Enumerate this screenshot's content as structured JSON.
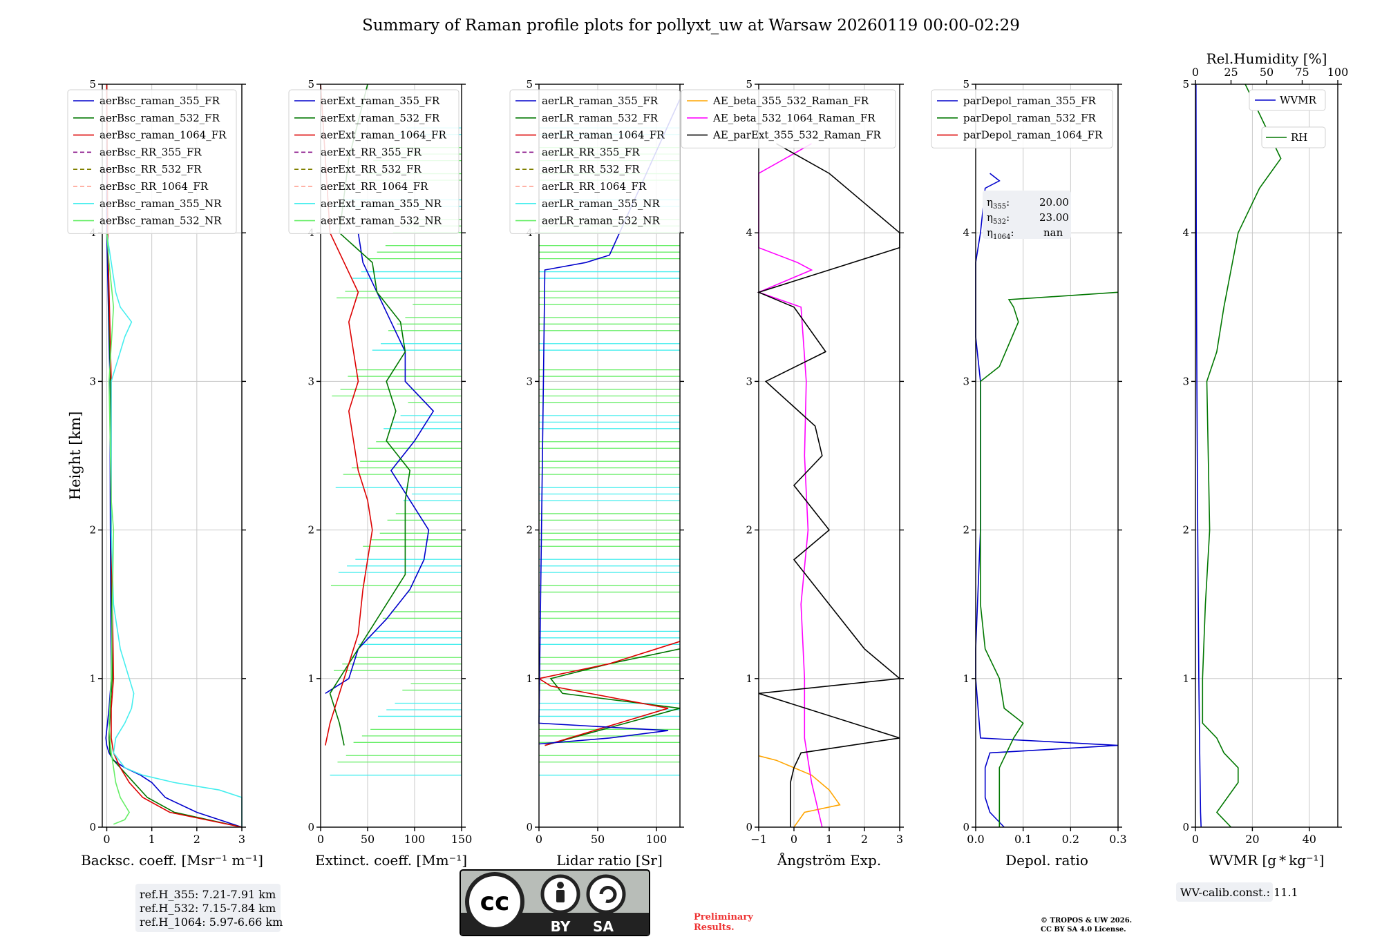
{
  "figure": {
    "title": "Summary of Raman profile plots for pollyxt_uw at Warsaw 20260119 00:00-02:29",
    "ylabel": "Height [km]",
    "license_badge": {
      "cc": "cc",
      "by": "BY",
      "sa": "SA"
    },
    "preliminary": [
      "Preliminary",
      "Results."
    ],
    "copyright": [
      "© TROPOS & UW 2026.",
      "CC BY SA 4.0 License."
    ],
    "ref_box": [
      "ref.H_355: 7.21-7.91 km",
      "ref.H_532: 7.15-7.84 km",
      "ref.H_1064: 5.97-6.66 km"
    ],
    "wv_box": "WV-calib.const.: 11.1",
    "eta_box": {
      "eta355": "20.00",
      "eta532": "23.00",
      "eta1064": "nan"
    }
  },
  "colors": {
    "blue": "#0000cc",
    "green": "#007700",
    "red": "#dd0000",
    "cyan": "#44eeee",
    "lightgreen": "#66ee66",
    "purple": "#800080",
    "olive": "#808000",
    "salmon": "#ff9988",
    "orange": "#ffa500",
    "magenta": "#ff00ff",
    "black": "#000000"
  },
  "chart_data": [
    {
      "type": "line",
      "id": "bsc",
      "xlabel": "Backsc. coeff. [Msr⁻¹ m⁻¹]",
      "xlim": [
        -0.1,
        3
      ],
      "ylim": [
        0,
        5
      ],
      "xticks": [
        0,
        1,
        2,
        3
      ],
      "xticklabels": [
        "0",
        "1",
        "2",
        "3"
      ],
      "legend": [
        "aerBsc_raman_355_FR",
        "aerBsc_raman_532_FR",
        "aerBsc_raman_1064_FR",
        "aerBsc_RR_355_FR",
        "aerBsc_RR_532_FR",
        "aerBsc_RR_1064_FR",
        "aerBsc_raman_355_NR",
        "aerBsc_raman_532_NR"
      ],
      "series": [
        {
          "name": "aerBsc_raman_355_FR",
          "color": "blue",
          "y": [
            0,
            0.1,
            0.2,
            0.3,
            0.35,
            0.4,
            0.45,
            0.5,
            0.55,
            0.6,
            0.8,
            1,
            2,
            3,
            4,
            5
          ],
          "x": [
            3,
            2,
            1.3,
            1.0,
            0.75,
            0.4,
            0.15,
            0.05,
            0.0,
            -0.02,
            0.05,
            0.1,
            0.08,
            0.07,
            0.0,
            0.0
          ]
        },
        {
          "name": "aerBsc_raman_532_FR",
          "color": "green",
          "y": [
            0,
            0.1,
            0.2,
            0.3,
            0.4,
            0.45,
            0.5,
            0.6,
            0.8,
            1,
            2,
            3,
            4,
            5
          ],
          "x": [
            3,
            1.5,
            0.9,
            0.6,
            0.3,
            0.15,
            0.07,
            0.05,
            0.08,
            0.12,
            0.1,
            0.08,
            0.02,
            0.0
          ]
        },
        {
          "name": "aerBsc_raman_1064_FR",
          "color": "red",
          "y": [
            0,
            0.1,
            0.2,
            0.3,
            0.4,
            0.5,
            0.6,
            0.8,
            1,
            2,
            3,
            4,
            5
          ],
          "x": [
            3,
            1.4,
            0.8,
            0.5,
            0.3,
            0.15,
            0.1,
            0.1,
            0.15,
            0.1,
            0.1,
            0.02,
            0.0
          ]
        },
        {
          "name": "aerBsc_raman_355_NR",
          "color": "cyan",
          "y": [
            0,
            0.2,
            0.25,
            0.3,
            0.35,
            0.4,
            0.5,
            0.6,
            0.7,
            0.8,
            0.9,
            1,
            1.2,
            1.4,
            1.5,
            2,
            3,
            3.3,
            3.4,
            3.5,
            3.6,
            3.8,
            4
          ],
          "x": [
            3,
            3,
            2.5,
            1.5,
            0.8,
            0.4,
            0.15,
            0.2,
            0.4,
            0.55,
            0.6,
            0.5,
            0.3,
            0.2,
            0.15,
            0.1,
            0.1,
            0.4,
            0.55,
            0.3,
            0.2,
            0.1,
            0.0
          ]
        },
        {
          "name": "aerBsc_raman_532_NR",
          "color": "lightgreen",
          "y": [
            0.02,
            0.05,
            0.1,
            0.2,
            0.3,
            0.4,
            0.5,
            0.7,
            1,
            2,
            2.2,
            3,
            3.5,
            3.8,
            4
          ],
          "x": [
            0.15,
            0.4,
            0.5,
            0.3,
            0.2,
            0.15,
            0.1,
            0.05,
            0.1,
            0.15,
            0.1,
            0.05,
            0.15,
            0.05,
            0.0
          ]
        }
      ]
    },
    {
      "type": "line",
      "id": "ext",
      "xlabel": "Extinct. coeff. [Mm⁻¹]",
      "xlim": [
        0,
        150
      ],
      "ylim": [
        0,
        5
      ],
      "xticks": [
        0,
        50,
        100,
        150
      ],
      "xticklabels": [
        "0",
        "50",
        "100",
        "150"
      ],
      "legend": [
        "aerExt_raman_355_FR",
        "aerExt_raman_532_FR",
        "aerExt_raman_1064_FR",
        "aerExt_RR_355_FR",
        "aerExt_RR_532_FR",
        "aerExt_RR_1064_FR",
        "aerExt_raman_355_NR",
        "aerExt_raman_532_NR"
      ],
      "series": [
        {
          "name": "aerExt_raman_355_FR",
          "color": "blue",
          "y": [
            0.9,
            1,
            1.2,
            1.4,
            1.6,
            1.8,
            2,
            2.2,
            2.4,
            2.6,
            2.8,
            3,
            3.2,
            3.4,
            3.6,
            3.8,
            4
          ],
          "x": [
            5,
            30,
            40,
            70,
            95,
            110,
            115,
            95,
            75,
            100,
            120,
            90,
            90,
            75,
            60,
            45,
            40
          ]
        },
        {
          "name": "aerExt_raman_532_FR",
          "color": "green",
          "y": [
            0.55,
            0.7,
            0.9,
            1.1,
            1.3,
            1.5,
            1.7,
            2,
            2.2,
            2.4,
            2.6,
            2.8,
            3,
            3.2,
            3.4,
            3.6,
            3.8,
            4,
            4.5,
            5
          ],
          "x": [
            25,
            20,
            10,
            30,
            50,
            70,
            90,
            90,
            90,
            95,
            70,
            80,
            70,
            90,
            85,
            60,
            55,
            20,
            30,
            50
          ]
        },
        {
          "name": "aerExt_raman_1064_FR",
          "color": "red",
          "y": [
            0.55,
            0.7,
            0.9,
            1.1,
            1.3,
            1.6,
            1.8,
            2,
            2.2,
            2.4,
            2.6,
            2.8,
            3,
            3.2,
            3.4,
            3.6,
            3.8,
            4,
            4.5,
            5
          ],
          "x": [
            5,
            10,
            20,
            30,
            40,
            45,
            50,
            55,
            50,
            40,
            35,
            30,
            40,
            35,
            30,
            40,
            25,
            10,
            5,
            0
          ]
        }
      ]
    },
    {
      "type": "line",
      "id": "lr",
      "xlabel": "Lidar ratio [Sr]",
      "xlim": [
        0,
        120
      ],
      "ylim": [
        0,
        5
      ],
      "xticks": [
        0,
        50,
        100
      ],
      "xticklabels": [
        "0",
        "50",
        "100"
      ],
      "legend": [
        "aerLR_raman_355_FR",
        "aerLR_raman_532_FR",
        "aerLR_raman_1064_FR",
        "aerLR_RR_355_FR",
        "aerLR_RR_532_FR",
        "aerLR_RR_1064_FR",
        "aerLR_raman_355_NR",
        "aerLR_raman_532_NR"
      ],
      "series": [
        {
          "name": "aerLR_raman_532_FR",
          "color": "green",
          "y": [
            0.55,
            0.8,
            0.9,
            1.0,
            1.1,
            1.2
          ],
          "x": [
            5,
            120,
            20,
            10,
            60,
            120
          ]
        },
        {
          "name": "aerLR_raman_1064_FR",
          "color": "red",
          "y": [
            0.55,
            0.8,
            0.95,
            1.0,
            1.05,
            1.1,
            1.2,
            1.25
          ],
          "x": [
            5,
            110,
            10,
            0,
            30,
            60,
            100,
            120
          ]
        },
        {
          "name": "aerLR_raman_355_FR",
          "color": "blue",
          "y": [
            0.56,
            0.6,
            0.65,
            0.7,
            3.75,
            3.8,
            3.85,
            4.9
          ],
          "x": [
            0,
            60,
            110,
            0,
            5,
            40,
            60,
            120
          ]
        }
      ]
    },
    {
      "type": "line",
      "id": "ae",
      "xlabel": "Ångström Exp.",
      "xlim": [
        -1,
        3
      ],
      "ylim": [
        0,
        5
      ],
      "xticks": [
        -1,
        0,
        1,
        2,
        3
      ],
      "xticklabels": [
        "−1",
        "0",
        "1",
        "2",
        "3"
      ],
      "legend": [
        "AE_beta_355_532_Raman_FR",
        "AE_beta_532_1064_Raman_FR",
        "AE_parExt_355_532_Raman_FR"
      ],
      "series": [
        {
          "name": "AE_beta_355_532_Raman_FR",
          "color": "orange",
          "y": [
            0,
            0.1,
            0.15,
            0.25,
            0.35,
            0.45,
            0.48
          ],
          "x": [
            0,
            0.3,
            1.3,
            1,
            0.5,
            -0.5,
            -1
          ]
        },
        {
          "name": "AE_beta_532_1064_Raman_FR",
          "color": "magenta",
          "y": [
            0,
            0.3,
            0.6,
            1,
            1.5,
            2,
            2.5,
            3,
            3.5,
            3.6,
            3.75,
            3.8,
            3.9,
            4.4,
            4.6
          ],
          "x": [
            0.8,
            0.5,
            0.3,
            0.3,
            0.2,
            0.4,
            0.3,
            0.35,
            0.2,
            -1,
            0.5,
            0.1,
            -1,
            -1,
            0.5
          ]
        },
        {
          "name": "AE_parExt_355_532_Raman_FR",
          "color": "black",
          "y": [
            0,
            0.3,
            0.4,
            0.5,
            0.6,
            0.9,
            1,
            1.2,
            1.5,
            1.8,
            2,
            2.3,
            2.5,
            2.7,
            3,
            3.2,
            3.5,
            3.6,
            3.9,
            4,
            4.2,
            4.4,
            4.6
          ],
          "x": [
            -0.1,
            -0.1,
            0,
            0.2,
            3,
            -1,
            3,
            2,
            1,
            0,
            1,
            0,
            0.8,
            0.6,
            -0.8,
            0.9,
            0,
            -1,
            3,
            3,
            2,
            1,
            -0.5
          ]
        }
      ]
    },
    {
      "type": "line",
      "id": "depol",
      "xlabel": "Depol. ratio",
      "xlim": [
        0,
        0.3
      ],
      "ylim": [
        0,
        5
      ],
      "xticks": [
        0,
        0.1,
        0.2,
        0.3
      ],
      "xticklabels": [
        "0.0",
        "0.1",
        "0.2",
        "0.3"
      ],
      "legend": [
        "parDepol_raman_355_FR",
        "parDepol_raman_532_FR",
        "parDepol_raman_1064_FR"
      ],
      "series": [
        {
          "name": "parDepol_raman_355_FR",
          "color": "blue",
          "y": [
            0,
            0.1,
            0.2,
            0.4,
            0.5,
            0.55,
            0.6,
            1,
            1.2,
            2,
            3,
            3.3,
            3.8,
            4,
            4.3,
            4.35,
            4.4
          ],
          "x": [
            0.06,
            0.03,
            0.02,
            0.02,
            0.03,
            0.3,
            0.01,
            0.0,
            0.0,
            0.01,
            0.01,
            0.0,
            0.0,
            0.01,
            0.02,
            0.05,
            0.03
          ]
        },
        {
          "name": "parDepol_raman_532_FR",
          "color": "green",
          "y": [
            0,
            0.2,
            0.4,
            0.6,
            0.7,
            0.8,
            1,
            1.2,
            1.5,
            2,
            3,
            3.1,
            3.4,
            3.5,
            3.55,
            3.6
          ],
          "x": [
            0.05,
            0.05,
            0.05,
            0.08,
            0.1,
            0.06,
            0.05,
            0.02,
            0.01,
            0.01,
            0.01,
            0.05,
            0.09,
            0.08,
            0.07,
            0.3
          ]
        }
      ]
    },
    {
      "type": "line",
      "id": "wv",
      "xlabel": "WVMR [g * kg⁻¹]",
      "x2label": "Rel.Humidity [%]",
      "xlim": [
        0,
        50
      ],
      "x2lim": [
        0,
        100
      ],
      "ylim": [
        0,
        5
      ],
      "xticks": [
        0,
        20,
        40
      ],
      "xticklabels": [
        "0",
        "20",
        "40"
      ],
      "x2ticks": [
        0,
        25,
        50,
        75,
        100
      ],
      "x2ticklabels": [
        "0",
        "25",
        "50",
        "75",
        "100"
      ],
      "legend": [
        "WVMR",
        "RH"
      ],
      "series": [
        {
          "name": "WVMR",
          "color": "blue",
          "axis": "x",
          "y": [
            0,
            0.1,
            0.5,
            1,
            1.5,
            2,
            3,
            4,
            5
          ],
          "x": [
            2,
            1.8,
            1.5,
            1.2,
            1.0,
            0.8,
            0.5,
            0.3,
            0.2
          ]
        },
        {
          "name": "RH",
          "color": "green",
          "axis": "x2",
          "y": [
            0,
            0.1,
            0.3,
            0.4,
            0.5,
            0.6,
            0.7,
            1,
            1.5,
            2,
            3,
            3.2,
            3.5,
            4,
            4.3,
            4.5,
            4.7,
            5
          ],
          "x2": [
            25,
            15,
            30,
            30,
            20,
            15,
            5,
            5,
            7,
            10,
            8,
            15,
            20,
            30,
            45,
            60,
            50,
            35
          ]
        }
      ]
    }
  ]
}
